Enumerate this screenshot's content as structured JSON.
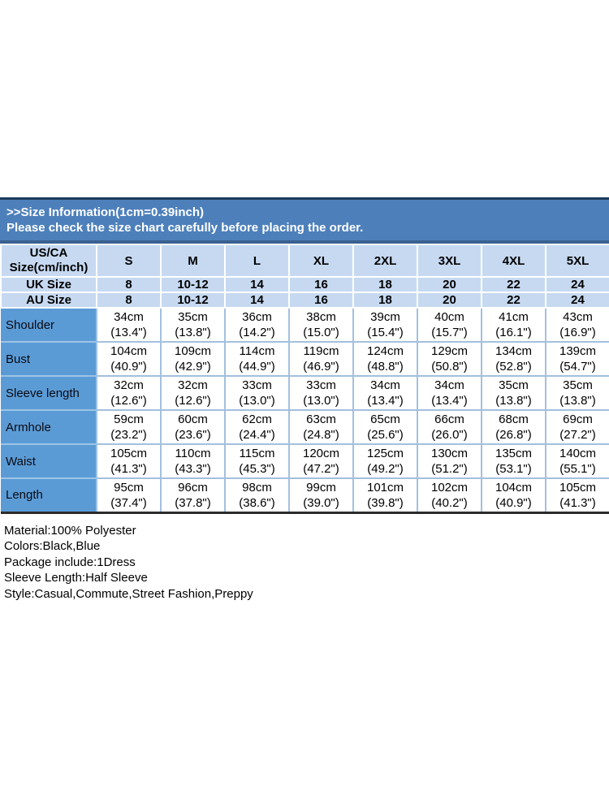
{
  "banner": {
    "title": ">>Size Information(1cm=0.39inch)",
    "subtitle": "Please check the size chart carefully before placing the order."
  },
  "size_chart": {
    "corner_header_line1": "US/CA",
    "corner_header_line2": "Size(cm/inch)",
    "size_columns": [
      "S",
      "M",
      "L",
      "XL",
      "2XL",
      "3XL",
      "4XL",
      "5XL"
    ],
    "region_size_rows": [
      {
        "label": "UK Size",
        "values": [
          "8",
          "10-12",
          "14",
          "16",
          "18",
          "20",
          "22",
          "24"
        ]
      },
      {
        "label": "AU Size",
        "values": [
          "8",
          "10-12",
          "14",
          "16",
          "18",
          "20",
          "22",
          "24"
        ]
      }
    ],
    "measurement_rows": [
      {
        "label": "Shoulder",
        "values": [
          {
            "cm": "34cm",
            "inch": "(13.4\")"
          },
          {
            "cm": "35cm",
            "inch": "(13.8\")"
          },
          {
            "cm": "36cm",
            "inch": "(14.2\")"
          },
          {
            "cm": "38cm",
            "inch": "(15.0\")"
          },
          {
            "cm": "39cm",
            "inch": "(15.4\")"
          },
          {
            "cm": "40cm",
            "inch": "(15.7\")"
          },
          {
            "cm": "41cm",
            "inch": "(16.1\")"
          },
          {
            "cm": "43cm",
            "inch": "(16.9\")"
          }
        ]
      },
      {
        "label": "Bust",
        "values": [
          {
            "cm": "104cm",
            "inch": "(40.9\")"
          },
          {
            "cm": "109cm",
            "inch": "(42.9\")"
          },
          {
            "cm": "114cm",
            "inch": "(44.9\")"
          },
          {
            "cm": "119cm",
            "inch": "(46.9\")"
          },
          {
            "cm": "124cm",
            "inch": "(48.8\")"
          },
          {
            "cm": "129cm",
            "inch": "(50.8\")"
          },
          {
            "cm": "134cm",
            "inch": "(52.8\")"
          },
          {
            "cm": "139cm",
            "inch": "(54.7\")"
          }
        ]
      },
      {
        "label": "Sleeve length",
        "values": [
          {
            "cm": "32cm",
            "inch": "(12.6\")"
          },
          {
            "cm": "32cm",
            "inch": "(12.6\")"
          },
          {
            "cm": "33cm",
            "inch": "(13.0\")"
          },
          {
            "cm": "33cm",
            "inch": "(13.0\")"
          },
          {
            "cm": "34cm",
            "inch": "(13.4\")"
          },
          {
            "cm": "34cm",
            "inch": "(13.4\")"
          },
          {
            "cm": "35cm",
            "inch": "(13.8\")"
          },
          {
            "cm": "35cm",
            "inch": "(13.8\")"
          }
        ]
      },
      {
        "label": "Armhole",
        "values": [
          {
            "cm": "59cm",
            "inch": "(23.2\")"
          },
          {
            "cm": "60cm",
            "inch": "(23.6\")"
          },
          {
            "cm": "62cm",
            "inch": "(24.4\")"
          },
          {
            "cm": "63cm",
            "inch": "(24.8\")"
          },
          {
            "cm": "65cm",
            "inch": "(25.6\")"
          },
          {
            "cm": "66cm",
            "inch": "(26.0\")"
          },
          {
            "cm": "68cm",
            "inch": "(26.8\")"
          },
          {
            "cm": "69cm",
            "inch": "(27.2\")"
          }
        ]
      },
      {
        "label": "Waist",
        "values": [
          {
            "cm": "105cm",
            "inch": "(41.3\")"
          },
          {
            "cm": "110cm",
            "inch": "(43.3\")"
          },
          {
            "cm": "115cm",
            "inch": "(45.3\")"
          },
          {
            "cm": "120cm",
            "inch": "(47.2\")"
          },
          {
            "cm": "125cm",
            "inch": "(49.2\")"
          },
          {
            "cm": "130cm",
            "inch": "(51.2\")"
          },
          {
            "cm": "135cm",
            "inch": "(53.1\")"
          },
          {
            "cm": "140cm",
            "inch": "(55.1\")"
          }
        ]
      },
      {
        "label": "Length",
        "values": [
          {
            "cm": "95cm",
            "inch": "(37.4\")"
          },
          {
            "cm": "96cm",
            "inch": "(37.8\")"
          },
          {
            "cm": "98cm",
            "inch": "(38.6\")"
          },
          {
            "cm": "99cm",
            "inch": "(39.0\")"
          },
          {
            "cm": "101cm",
            "inch": "(39.8\")"
          },
          {
            "cm": "102cm",
            "inch": "(40.2\")"
          },
          {
            "cm": "104cm",
            "inch": "(40.9\")"
          },
          {
            "cm": "105cm",
            "inch": "(41.3\")"
          }
        ]
      }
    ]
  },
  "product_details": {
    "lines": [
      "Material:100% Polyester",
      "Colors:Black,Blue",
      "Package include:1Dress",
      "Sleeve Length:Half Sleeve",
      "Style:Casual,Commute,Street Fashion,Preppy"
    ]
  },
  "theme": {
    "banner_blue": "#4d80bb",
    "banner_edge_dark": "#1e3c5c",
    "header_light_blue": "#c6d9f1",
    "label_column_blue": "#5b9bd5",
    "grid_line_blue": "#a3c0de",
    "table_bottom_line": "#2b2b2b",
    "banner_text": "#ffffff",
    "body_text": "#000000"
  }
}
